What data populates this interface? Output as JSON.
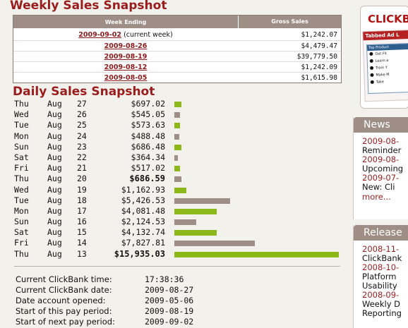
{
  "weekly": {
    "title": "Weekly Sales Snapshot",
    "col_week": "Week Ending",
    "col_sales": "Gross Sales",
    "rows": [
      {
        "date": "2009-09-02",
        "note": "(current week)",
        "sales": "$1,242.07"
      },
      {
        "date": "2009-08-26",
        "note": "",
        "sales": "$4,479.47"
      },
      {
        "date": "2009-08-19",
        "note": "",
        "sales": "$39,779.50"
      },
      {
        "date": "2009-08-12",
        "note": "",
        "sales": "$1,242.09"
      },
      {
        "date": "2009-08-05",
        "note": "",
        "sales": "$1,615.98"
      }
    ]
  },
  "daily": {
    "title": "Daily Sales Snapshot",
    "max_value": 15935.03,
    "colors": {
      "green": "#8cb81a",
      "brown": "#9e8e86"
    },
    "rows": [
      {
        "dow": "Thu",
        "mon": "Aug",
        "day": "27",
        "amount": "$697.02",
        "value": 697.02,
        "color": "green",
        "bold": false
      },
      {
        "dow": "Wed",
        "mon": "Aug",
        "day": "26",
        "amount": "$545.05",
        "value": 545.05,
        "color": "brown",
        "bold": false
      },
      {
        "dow": "Tue",
        "mon": "Aug",
        "day": "25",
        "amount": "$573.63",
        "value": 573.63,
        "color": "green",
        "bold": false
      },
      {
        "dow": "Mon",
        "mon": "Aug",
        "day": "24",
        "amount": "$488.48",
        "value": 488.48,
        "color": "brown",
        "bold": false
      },
      {
        "dow": "Sun",
        "mon": "Aug",
        "day": "23",
        "amount": "$686.48",
        "value": 686.48,
        "color": "green",
        "bold": false
      },
      {
        "dow": "Sat",
        "mon": "Aug",
        "day": "22",
        "amount": "$364.34",
        "value": 364.34,
        "color": "brown",
        "bold": false
      },
      {
        "dow": "Fri",
        "mon": "Aug",
        "day": "21",
        "amount": "$517.02",
        "value": 517.02,
        "color": "green",
        "bold": false
      },
      {
        "dow": "Thu",
        "mon": "Aug",
        "day": "20",
        "amount": "$686.59",
        "value": 686.59,
        "color": "brown",
        "bold": true
      },
      {
        "dow": "Wed",
        "mon": "Aug",
        "day": "19",
        "amount": "$1,162.93",
        "value": 1162.93,
        "color": "green",
        "bold": false
      },
      {
        "dow": "Tue",
        "mon": "Aug",
        "day": "18",
        "amount": "$5,426.53",
        "value": 5426.53,
        "color": "brown",
        "bold": false
      },
      {
        "dow": "Mon",
        "mon": "Aug",
        "day": "17",
        "amount": "$4,081.48",
        "value": 4081.48,
        "color": "green",
        "bold": false
      },
      {
        "dow": "Sun",
        "mon": "Aug",
        "day": "16",
        "amount": "$2,124.53",
        "value": 2124.53,
        "color": "brown",
        "bold": false
      },
      {
        "dow": "Sat",
        "mon": "Aug",
        "day": "15",
        "amount": "$4,132.74",
        "value": 4132.74,
        "color": "green",
        "bold": false
      },
      {
        "dow": "Fri",
        "mon": "Aug",
        "day": "14",
        "amount": "$7,827.81",
        "value": 7827.81,
        "color": "brown",
        "bold": false
      },
      {
        "dow": "Thu",
        "mon": "Aug",
        "day": "13",
        "amount": "$15,935.03",
        "value": 15935.03,
        "color": "green",
        "bold": true
      }
    ]
  },
  "stats": [
    {
      "label": "Current ClickBank time:",
      "value": "17:38:36"
    },
    {
      "label": "Current ClickBank date:",
      "value": "2009-08-27"
    },
    {
      "label": "Date account opened:",
      "value": "2009-05-06"
    },
    {
      "label": "Start of this pay period:",
      "value": "2009-08-19"
    },
    {
      "label": "Start of next pay period:",
      "value": "2009-09-02"
    }
  ],
  "sidebar": {
    "ad": {
      "logo": "CLICKB",
      "card_title": "Tabbed Ad L",
      "inner_title": "Top Product",
      "items": [
        "Get Fit",
        "Learn a",
        "Train Y",
        "Make M",
        "Take"
      ]
    },
    "news": {
      "title": "News",
      "items": [
        {
          "date": "2009-08-",
          "text": "Reminder"
        },
        {
          "date": "2009-08-",
          "text": "Upcoming"
        },
        {
          "date": "2009-07-",
          "text": "New: Cli"
        }
      ],
      "more": "more..."
    },
    "releases": {
      "title": "Release",
      "items": [
        {
          "date": "2008-11-",
          "lines": [
            "ClickBank"
          ]
        },
        {
          "date": "2008-10-",
          "lines": [
            "Platform",
            "Usability"
          ]
        },
        {
          "date": "2008-09-",
          "lines": [
            "Weekly D",
            "Reporting"
          ]
        }
      ]
    }
  }
}
